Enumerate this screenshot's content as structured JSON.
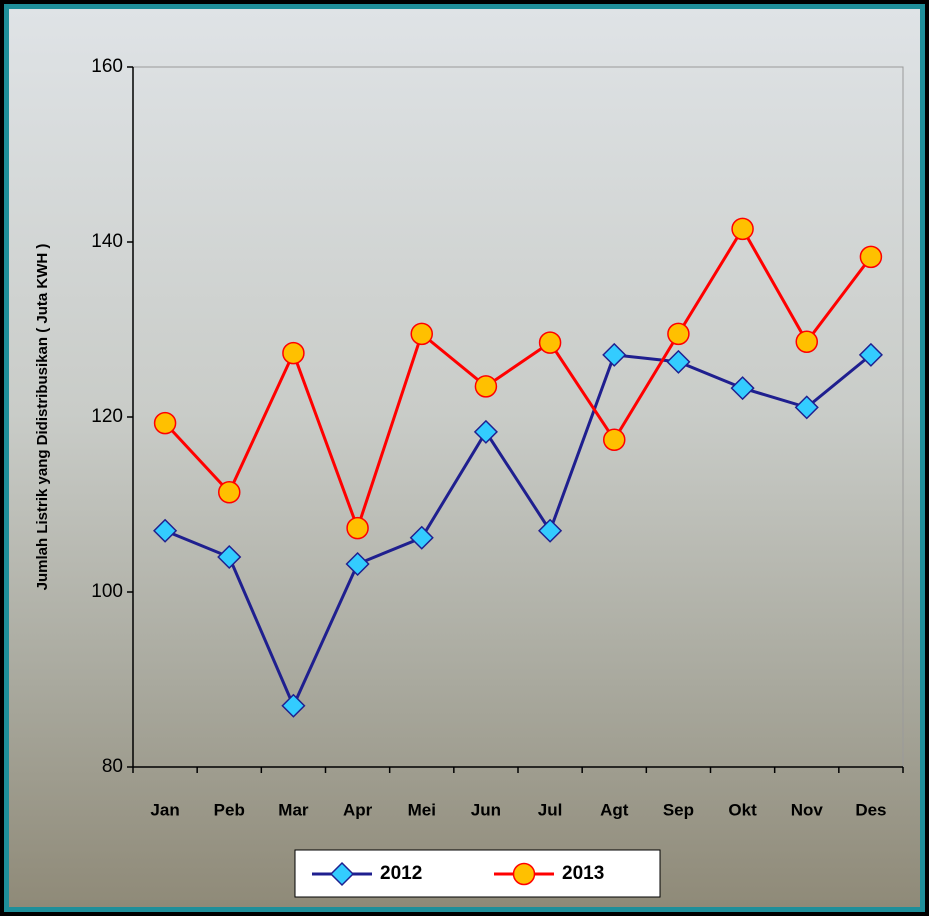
{
  "chart_data": {
    "type": "line",
    "y_label": "Jumlah Listrik yang Didistribusikan ( Juta KWH )",
    "categories": [
      "Jan",
      "Peb",
      "Mar",
      "Apr",
      "Mei",
      "Jun",
      "Jul",
      "Agt",
      "Sep",
      "Okt",
      "Nov",
      "Des"
    ],
    "series": [
      {
        "name": "2012",
        "color": "#1f1f8f",
        "marker_color": "#33ccff",
        "marker": "diamond",
        "values": [
          107,
          104,
          87,
          103.2,
          106.2,
          118.3,
          107,
          127.1,
          126.3,
          123.3,
          121.1,
          127.1
        ]
      },
      {
        "name": "2013",
        "color": "#ff0000",
        "marker_color": "#ffc000",
        "marker": "circle",
        "values": [
          119.3,
          111.4,
          127.3,
          107.3,
          129.5,
          123.5,
          128.5,
          117.4,
          129.5,
          141.5,
          128.6,
          138.3
        ]
      }
    ],
    "ylim": [
      80,
      160
    ],
    "yticks": [
      80,
      100,
      120,
      140,
      160
    ],
    "legend": "bottom"
  }
}
